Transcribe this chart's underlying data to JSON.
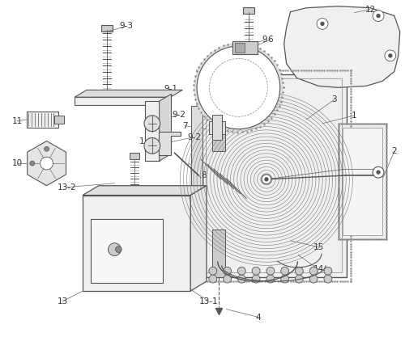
{
  "bg_color": "#ffffff",
  "line_color": "#555555",
  "label_color": "#333333",
  "fig_width": 5.0,
  "fig_height": 4.17,
  "dpi": 100
}
